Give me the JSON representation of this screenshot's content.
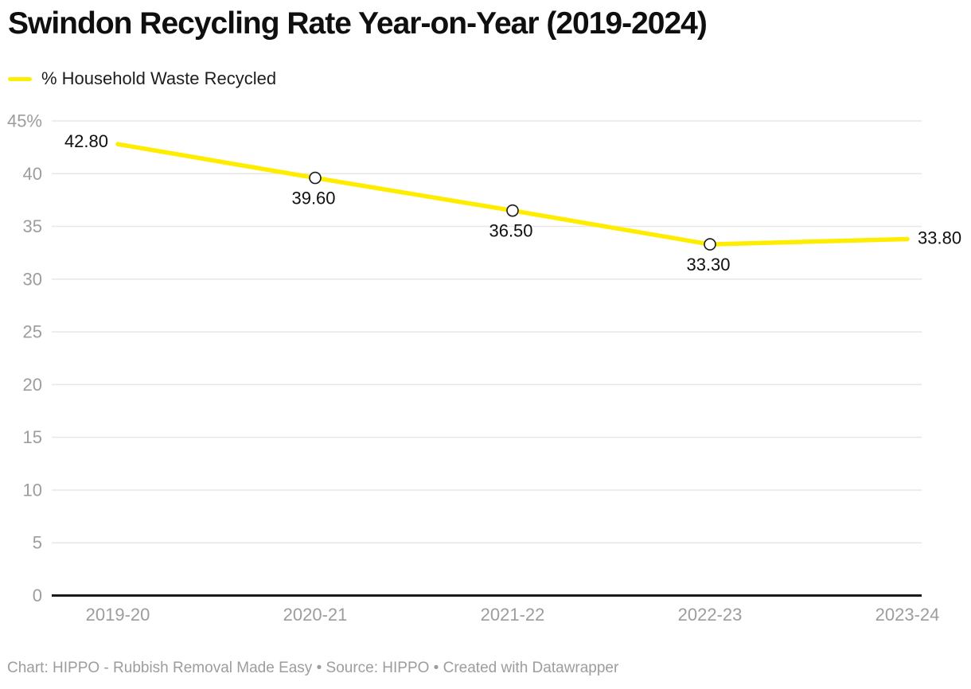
{
  "header": {
    "title": "Swindon Recycling Rate Year-on-Year (2019-2024)"
  },
  "legend": {
    "label": "% Household Waste Recycled",
    "swatch_color": "#FFED00"
  },
  "chart_data": {
    "type": "line",
    "categories": [
      "2019-20",
      "2020-21",
      "2021-22",
      "2022-23",
      "2023-24"
    ],
    "series": [
      {
        "name": "% Household Waste Recycled",
        "values": [
          42.8,
          39.6,
          36.5,
          33.3,
          33.8
        ],
        "value_labels": [
          "42.80",
          "39.60",
          "36.50",
          "33.30",
          "33.80"
        ],
        "color": "#FFED00"
      }
    ],
    "title": "Swindon Recycling Rate Year-on-Year (2019-2024)",
    "xlabel": "",
    "ylabel": "",
    "ylim": [
      0,
      45
    ],
    "yticks": [
      0,
      5,
      10,
      15,
      20,
      25,
      30,
      35,
      40,
      45
    ],
    "ytick_labels": [
      "0",
      "5",
      "10",
      "15",
      "20",
      "25",
      "30",
      "35",
      "40",
      "45%"
    ],
    "grid": true,
    "legend_position": "top-left"
  },
  "footer": {
    "text": "Chart: HIPPO - Rubbish Removal Made Easy • Source: HIPPO • Created with Datawrapper"
  },
  "colors": {
    "line": "#FFED00",
    "axis": "#1a1a1a",
    "grid": "#e7e7e7",
    "tick_label": "#9d9d9d",
    "data_label": "#101010",
    "marker_fill": "#ffffff",
    "marker_stroke": "#1a1a1a",
    "footer_text": "#9d9d9d"
  }
}
